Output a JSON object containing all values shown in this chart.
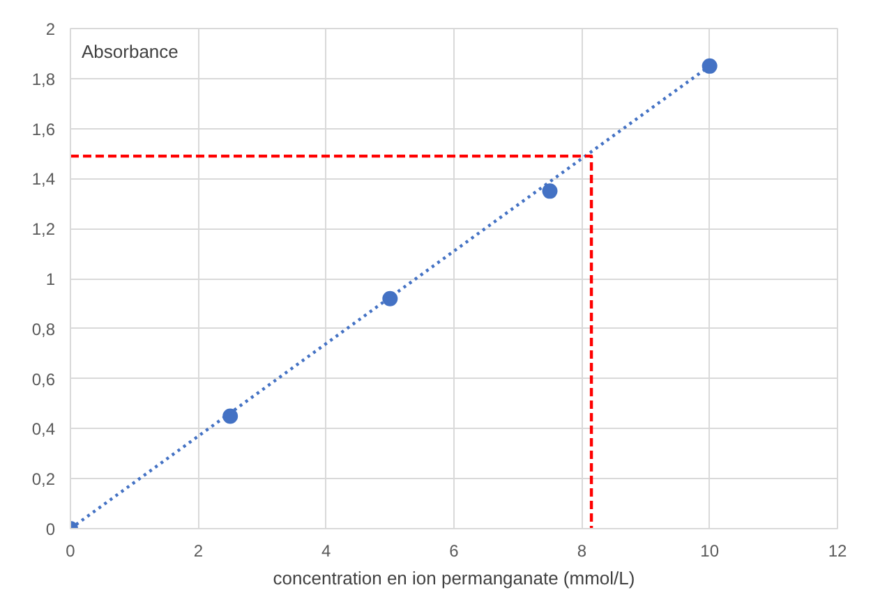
{
  "chart_data": {
    "type": "scatter",
    "ylabel": "Absorbance",
    "xlabel": "concentration en ion permanganate (mmol/L)",
    "x": [
      0,
      2.5,
      5,
      7.5,
      10
    ],
    "series": [
      {
        "color": "#4472c4",
        "values": [
          0,
          0.45,
          0.92,
          1.35,
          1.85
        ],
        "marker": "circle"
      },
      {
        "type": "line",
        "color": "#4472c4",
        "x": [
          0,
          10
        ],
        "values": [
          0,
          1.85
        ],
        "line_style": "dotted",
        "marker": "none"
      },
      {
        "type": "line",
        "color": "#ff0000",
        "x": [
          0,
          8.15,
          8.15
        ],
        "values": [
          1.49,
          1.49,
          0
        ],
        "line_style": "dashed",
        "marker": "none"
      }
    ],
    "xlim": [
      0,
      12
    ],
    "ylim": [
      0,
      2
    ],
    "xticks": [
      0,
      2,
      4,
      6,
      8,
      10,
      12
    ],
    "yticks": [
      0,
      {
        "value": 0.2,
        "label": "0,2"
      },
      {
        "value": 0.4,
        "label": "0,4"
      },
      {
        "value": 0.6,
        "label": "0,6"
      },
      {
        "value": 0.8,
        "label": "0,8"
      },
      1,
      {
        "value": 1.2,
        "label": "1,2"
      },
      {
        "value": 1.4,
        "label": "1,4"
      },
      {
        "value": 1.6,
        "label": "1,6"
      },
      {
        "value": 1.8,
        "label": "1,8"
      },
      2
    ],
    "grid": true
  }
}
